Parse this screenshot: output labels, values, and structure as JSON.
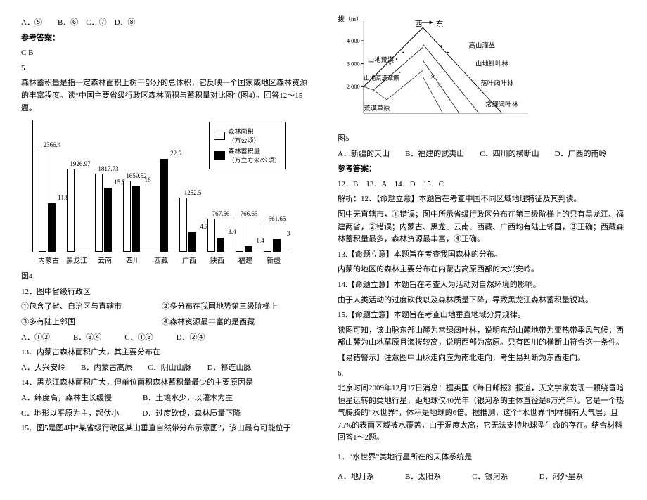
{
  "left": {
    "opt_line": "A．⑤　　B．⑥　C．⑦　D．⑧",
    "ref_title": "参考答案：",
    "ref_ans": "C  B",
    "q5_num": "5.",
    "q5_p1": "森林蓄积量是指一定森林面积上树干部分的总体积，它反映一个国家或地区森林资源的丰富程度。读“中国主要省级行政区森林面积与蓄积量对比图”（图4）。回答12～15题。",
    "chart": {
      "legend_area": "森林面积",
      "legend_area_unit": "（万公顷）",
      "legend_vol": "森林蓄积量",
      "legend_vol_unit": "（万立方米/公顷）",
      "max": 2400,
      "items": [
        {
          "name": "内蒙古",
          "a": 2366.4,
          "b": 11.8
        },
        {
          "name": "黑龙江",
          "a": 1926.97,
          "b": null
        },
        {
          "name": "云南",
          "a": 1817.73,
          "b": 15.5
        },
        {
          "name": "四川",
          "a": 1659.52,
          "b": 16.0,
          "b2": 1462.65
        },
        {
          "name": "西藏",
          "a": null,
          "b": 22.5
        },
        {
          "name": "广西",
          "a": 1252.5,
          "b": 4.7
        },
        {
          "name": "陕西",
          "a": 767.56,
          "b": 3.4
        },
        {
          "name": "福建",
          "a": 766.65,
          "b": 1.4
        },
        {
          "name": "新疆",
          "a": 661.65,
          "b": 3.0
        }
      ],
      "fig_label": "图4"
    },
    "q12": "12．图中省级行政区",
    "q12_o1": "①包含了省、自治区与直辖市",
    "q12_o2": "②多分布在我国地势第三级阶梯上",
    "q12_o3": "③多有陆上邻国",
    "q12_o4": "④森林资源最丰富的是西藏",
    "q12_opts": "A．①②　　　B．③④　　　C．①③　　　D．②④",
    "q13": "13．内蒙古森林面积广大，其主要分布在",
    "q13_opts": "A．大兴安岭　　B．内蒙古高原　　C．阴山山脉　　D．祁连山脉",
    "q14": "14．黑龙江森林面积广大，但单位面积森林蓄积量最少的主要原因是",
    "q14_opts": "A．纬度高，森林生长缓慢　　　　B．土壤水少，以灌木为主",
    "q14_opts2": "C．地形以平原为主，起伏小　　　D．过度砍伐，森林质量下降",
    "q15": "15．图5是图4中“某省级行政区某山垂直自然带分布示意图”，该山最有可能位于"
  },
  "right": {
    "svg_labels": {
      "alt_axis": "海拔（m）",
      "a4000": "4 000",
      "a3000": "3 000",
      "a2000": "2 000",
      "west": "西",
      "east": "东",
      "v1": "高山灌丛",
      "v2": "山地针叶林",
      "v3": "落叶阔叶林",
      "v4": "常绿阔叶林",
      "w1": "山地荒漠",
      "w2": "山地荒漠草原",
      "w3": "荒漠草原"
    },
    "fig5": "图5",
    "fig5_opts": "A．新疆的天山　　B．福建的武夷山　　C．四川的横断山　　D．广西的南岭",
    "ref_title": "参考答案：",
    "ans_line": "12．B　13．A　14．D　15．C",
    "exp12a": "解析：12．【命题立意】本题旨在考查中国不同区域地理特征及其判读。",
    "exp12b": "图中无直辖市，①错误；图中所示省级行政区分布在第三级阶梯上的只有黑龙江、福建两省，②错误；内蒙古、黑龙、云南、西藏、广西均有陆上邻国，③正确；西藏森林蓄积量最多，森林资源最丰富，④正确。",
    "exp13a": "13.【命题立意】本题旨在考查我国森林的分布。",
    "exp13b": "内蒙的地区的森林主要分布在内蒙古高原西部的大兴安岭。",
    "exp14a": "14.【命题立意】本题旨在考查人为活动对自然环境的影响。",
    "exp14b": "由于人类活动的过度砍伐以及森林质量下降，导致黑龙江森林蓄积量锐减。",
    "exp15a": "15.【命题立意】本题旨在考查山地垂直地域分异规律。",
    "exp15b": "读图可知，该山脉东部山麓为常绿阔叶林，说明东部山麓地带为亚热带季风气候；西部山麓为山地草原且海拔较高，说明西部为高原。只有四川的横断山符合这一条件。",
    "exp15c": "【易错警示】注意图中山脉走向应为南北走向，考生易判断为东西走向。",
    "q6_num": "6.",
    "q6_p": "北京时间2009年12月17日消息：据英国《每日邮报》报道，天文学家发现一颗绕昏暗恒星运转的类地行星，距地球仅40光年（银河系的主体直径是8万光年）。它是一个热气腾腾的“水世界”，体积是地球的6倍。据推测，这个“水世界”同样拥有大气层，且75%的表面区域被水覆盖，由于温度太高，它无法支持地球型生命的存在。结合材料回答1～2题。",
    "q6_1": "1．“水世界”类地行星所在的天体系统是",
    "q6_1_opts": "A．地月系　　　　B．太阳系　　　　C．银河系　　　　D．河外星系"
  }
}
